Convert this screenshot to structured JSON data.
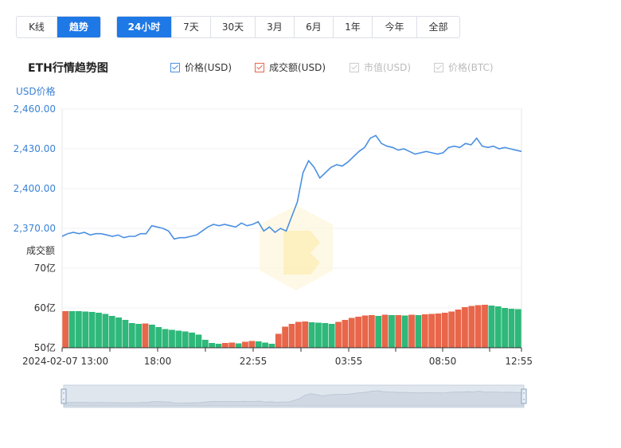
{
  "tabs_type": [
    {
      "label": "K线",
      "active": false
    },
    {
      "label": "趋势",
      "active": true
    }
  ],
  "tabs_range": [
    {
      "label": "24小时",
      "active": true
    },
    {
      "label": "7天",
      "active": false
    },
    {
      "label": "30天",
      "active": false
    },
    {
      "label": "3月",
      "active": false
    },
    {
      "label": "6月",
      "active": false
    },
    {
      "label": "1年",
      "active": false
    },
    {
      "label": "今年",
      "active": false
    },
    {
      "label": "全部",
      "active": false
    }
  ],
  "title": "ETH行情趋势图",
  "legend": [
    {
      "label": "价格(USD)",
      "checked": true,
      "color": "#4a90e2"
    },
    {
      "label": "成交额(USD)",
      "checked": true,
      "color": "#e8664a"
    },
    {
      "label": "市值(USD)",
      "checked": false,
      "color": "#cccccc"
    },
    {
      "label": "价格(BTC)",
      "checked": false,
      "color": "#cccccc"
    }
  ],
  "chart_data": {
    "type": "line",
    "price_axis": {
      "label": "USD价格",
      "ticks": [
        "2,460.00",
        "2,430.00",
        "2,400.00",
        "2,370.00"
      ],
      "tick_values": [
        2460,
        2430,
        2400,
        2370
      ],
      "ylim": [
        2370,
        2460
      ]
    },
    "volume_axis": {
      "label": "成交额",
      "ticks": [
        "70亿",
        "60亿",
        "50亿"
      ],
      "tick_values": [
        70,
        60,
        50
      ],
      "ylim": [
        50,
        70
      ]
    },
    "x_ticks": [
      "2024-02-07 13:00",
      "18:00",
      "22:55",
      "03:55",
      "08:50",
      "12:55"
    ],
    "price_series": {
      "name": "价格(USD)",
      "color": "#4a90e2",
      "values": [
        2364,
        2366,
        2367,
        2366,
        2367,
        2365,
        2366,
        2366,
        2365,
        2364,
        2365,
        2363,
        2364,
        2364,
        2366,
        2366,
        2372,
        2371,
        2370,
        2368,
        2362,
        2363,
        2363,
        2364,
        2365,
        2368,
        2371,
        2373,
        2372,
        2373,
        2372,
        2371,
        2374,
        2372,
        2373,
        2375,
        2368,
        2371,
        2367,
        2370,
        2368,
        2379,
        2390,
        2412,
        2421,
        2416,
        2408,
        2412,
        2416,
        2418,
        2417,
        2420,
        2424,
        2428,
        2431,
        2438,
        2440,
        2434,
        2432,
        2431,
        2429,
        2430,
        2428,
        2426,
        2427,
        2428,
        2427,
        2426,
        2427,
        2431,
        2432,
        2431,
        2434,
        2433,
        2438,
        2432,
        2431,
        2432,
        2430,
        2431,
        2430,
        2429,
        2428
      ],
      "color_up": "#e8664a",
      "color_down": "#2eb87a"
    },
    "volume_series": {
      "name": "成交额(USD)",
      "values": [
        59.2,
        59.2,
        59.2,
        59.1,
        59.0,
        58.8,
        58.5,
        58.0,
        57.6,
        57.0,
        56.2,
        56.0,
        56.1,
        55.8,
        55.2,
        54.7,
        54.5,
        54.3,
        54.1,
        53.8,
        53.3,
        52.0,
        51.2,
        51.0,
        51.2,
        51.3,
        51.1,
        51.5,
        51.7,
        51.6,
        51.3,
        51.0,
        53.5,
        55.3,
        56.0,
        56.5,
        56.6,
        56.4,
        56.3,
        56.2,
        56.0,
        56.5,
        57.0,
        57.5,
        57.8,
        58.1,
        58.2,
        58.0,
        58.3,
        58.2,
        58.2,
        58.1,
        58.3,
        58.2,
        58.4,
        58.5,
        58.6,
        58.8,
        59.1,
        59.6,
        60.2,
        60.5,
        60.7,
        60.8,
        60.6,
        60.4,
        60.0,
        59.8,
        59.7
      ],
      "dirs": [
        1,
        0,
        0,
        0,
        0,
        0,
        0,
        0,
        0,
        0,
        0,
        0,
        1,
        0,
        0,
        0,
        0,
        0,
        0,
        0,
        0,
        0,
        0,
        0,
        1,
        1,
        0,
        1,
        1,
        0,
        0,
        0,
        1,
        1,
        1,
        1,
        1,
        0,
        0,
        0,
        0,
        1,
        1,
        1,
        1,
        1,
        1,
        0,
        1,
        0,
        1,
        0,
        1,
        0,
        1,
        1,
        1,
        1,
        1,
        1,
        1,
        1,
        1,
        1,
        0,
        0,
        0,
        0,
        0
      ]
    }
  }
}
